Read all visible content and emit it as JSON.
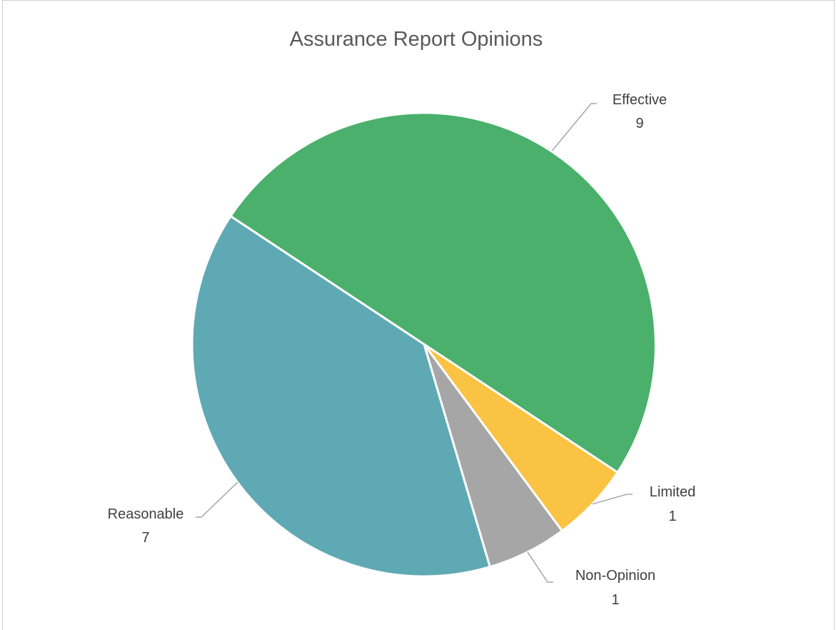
{
  "chart_data": {
    "type": "pie",
    "title": "Assurance Report Opinions",
    "slices": [
      {
        "label": "Effective",
        "value": 9,
        "color": "#4bb06b"
      },
      {
        "label": "Limited",
        "value": 1,
        "color": "#fbc343"
      },
      {
        "label": "Non-Opinion",
        "value": 1,
        "color": "#a6a6a6"
      },
      {
        "label": "Reasonable",
        "value": 7,
        "color": "#5fa9b5"
      }
    ],
    "start_angle_deg": -146.5,
    "data_labels": "category-and-value",
    "legend": "none"
  }
}
